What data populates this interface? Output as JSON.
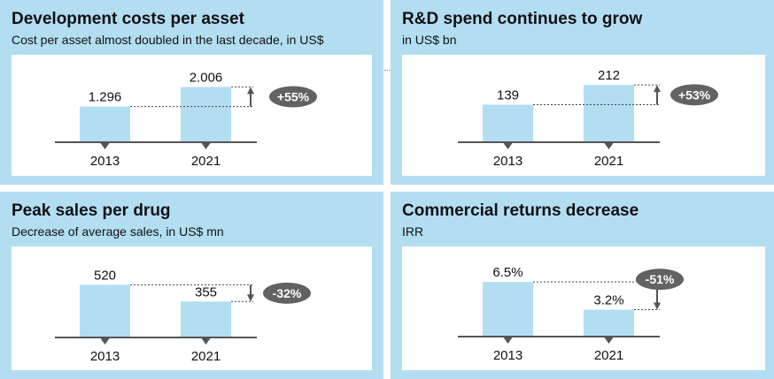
{
  "colors": {
    "panel": "#b3def2",
    "bar": "#b3def2",
    "axis": "#555555",
    "badge": "#626262"
  },
  "chart_data": [
    {
      "type": "bar",
      "title": "Development costs per asset",
      "subtitle": "Cost per asset almost doubled in the last decade, in US$",
      "categories": [
        "2013",
        "2021"
      ],
      "values": [
        1.296,
        2.006
      ],
      "value_labels": [
        "1.296",
        "2.006"
      ],
      "change": "+55%",
      "direction": "up",
      "ylim": [
        0,
        2.5
      ]
    },
    {
      "type": "bar",
      "title": "R&D spend continues to grow",
      "subtitle": "in US$ bn",
      "categories": [
        "2013",
        "2021"
      ],
      "values": [
        139,
        212
      ],
      "value_labels": [
        "139",
        "212"
      ],
      "change": "+53%",
      "direction": "up",
      "ylim": [
        0,
        255
      ]
    },
    {
      "type": "bar",
      "title": "Peak sales per drug",
      "subtitle": "Decrease of average sales, in US$ mn",
      "categories": [
        "2013",
        "2021"
      ],
      "values": [
        520,
        355
      ],
      "value_labels": [
        "520",
        "355"
      ],
      "change": "-32%",
      "direction": "down",
      "ylim": [
        0,
        680
      ]
    },
    {
      "type": "bar",
      "title": "Commercial returns decrease",
      "subtitle": "IRR",
      "categories": [
        "2013",
        "2021"
      ],
      "values": [
        6.5,
        3.2
      ],
      "value_labels": [
        "6.5%",
        "3.2%"
      ],
      "change": "-51%",
      "direction": "down",
      "ylim": [
        0,
        8.2
      ]
    }
  ]
}
